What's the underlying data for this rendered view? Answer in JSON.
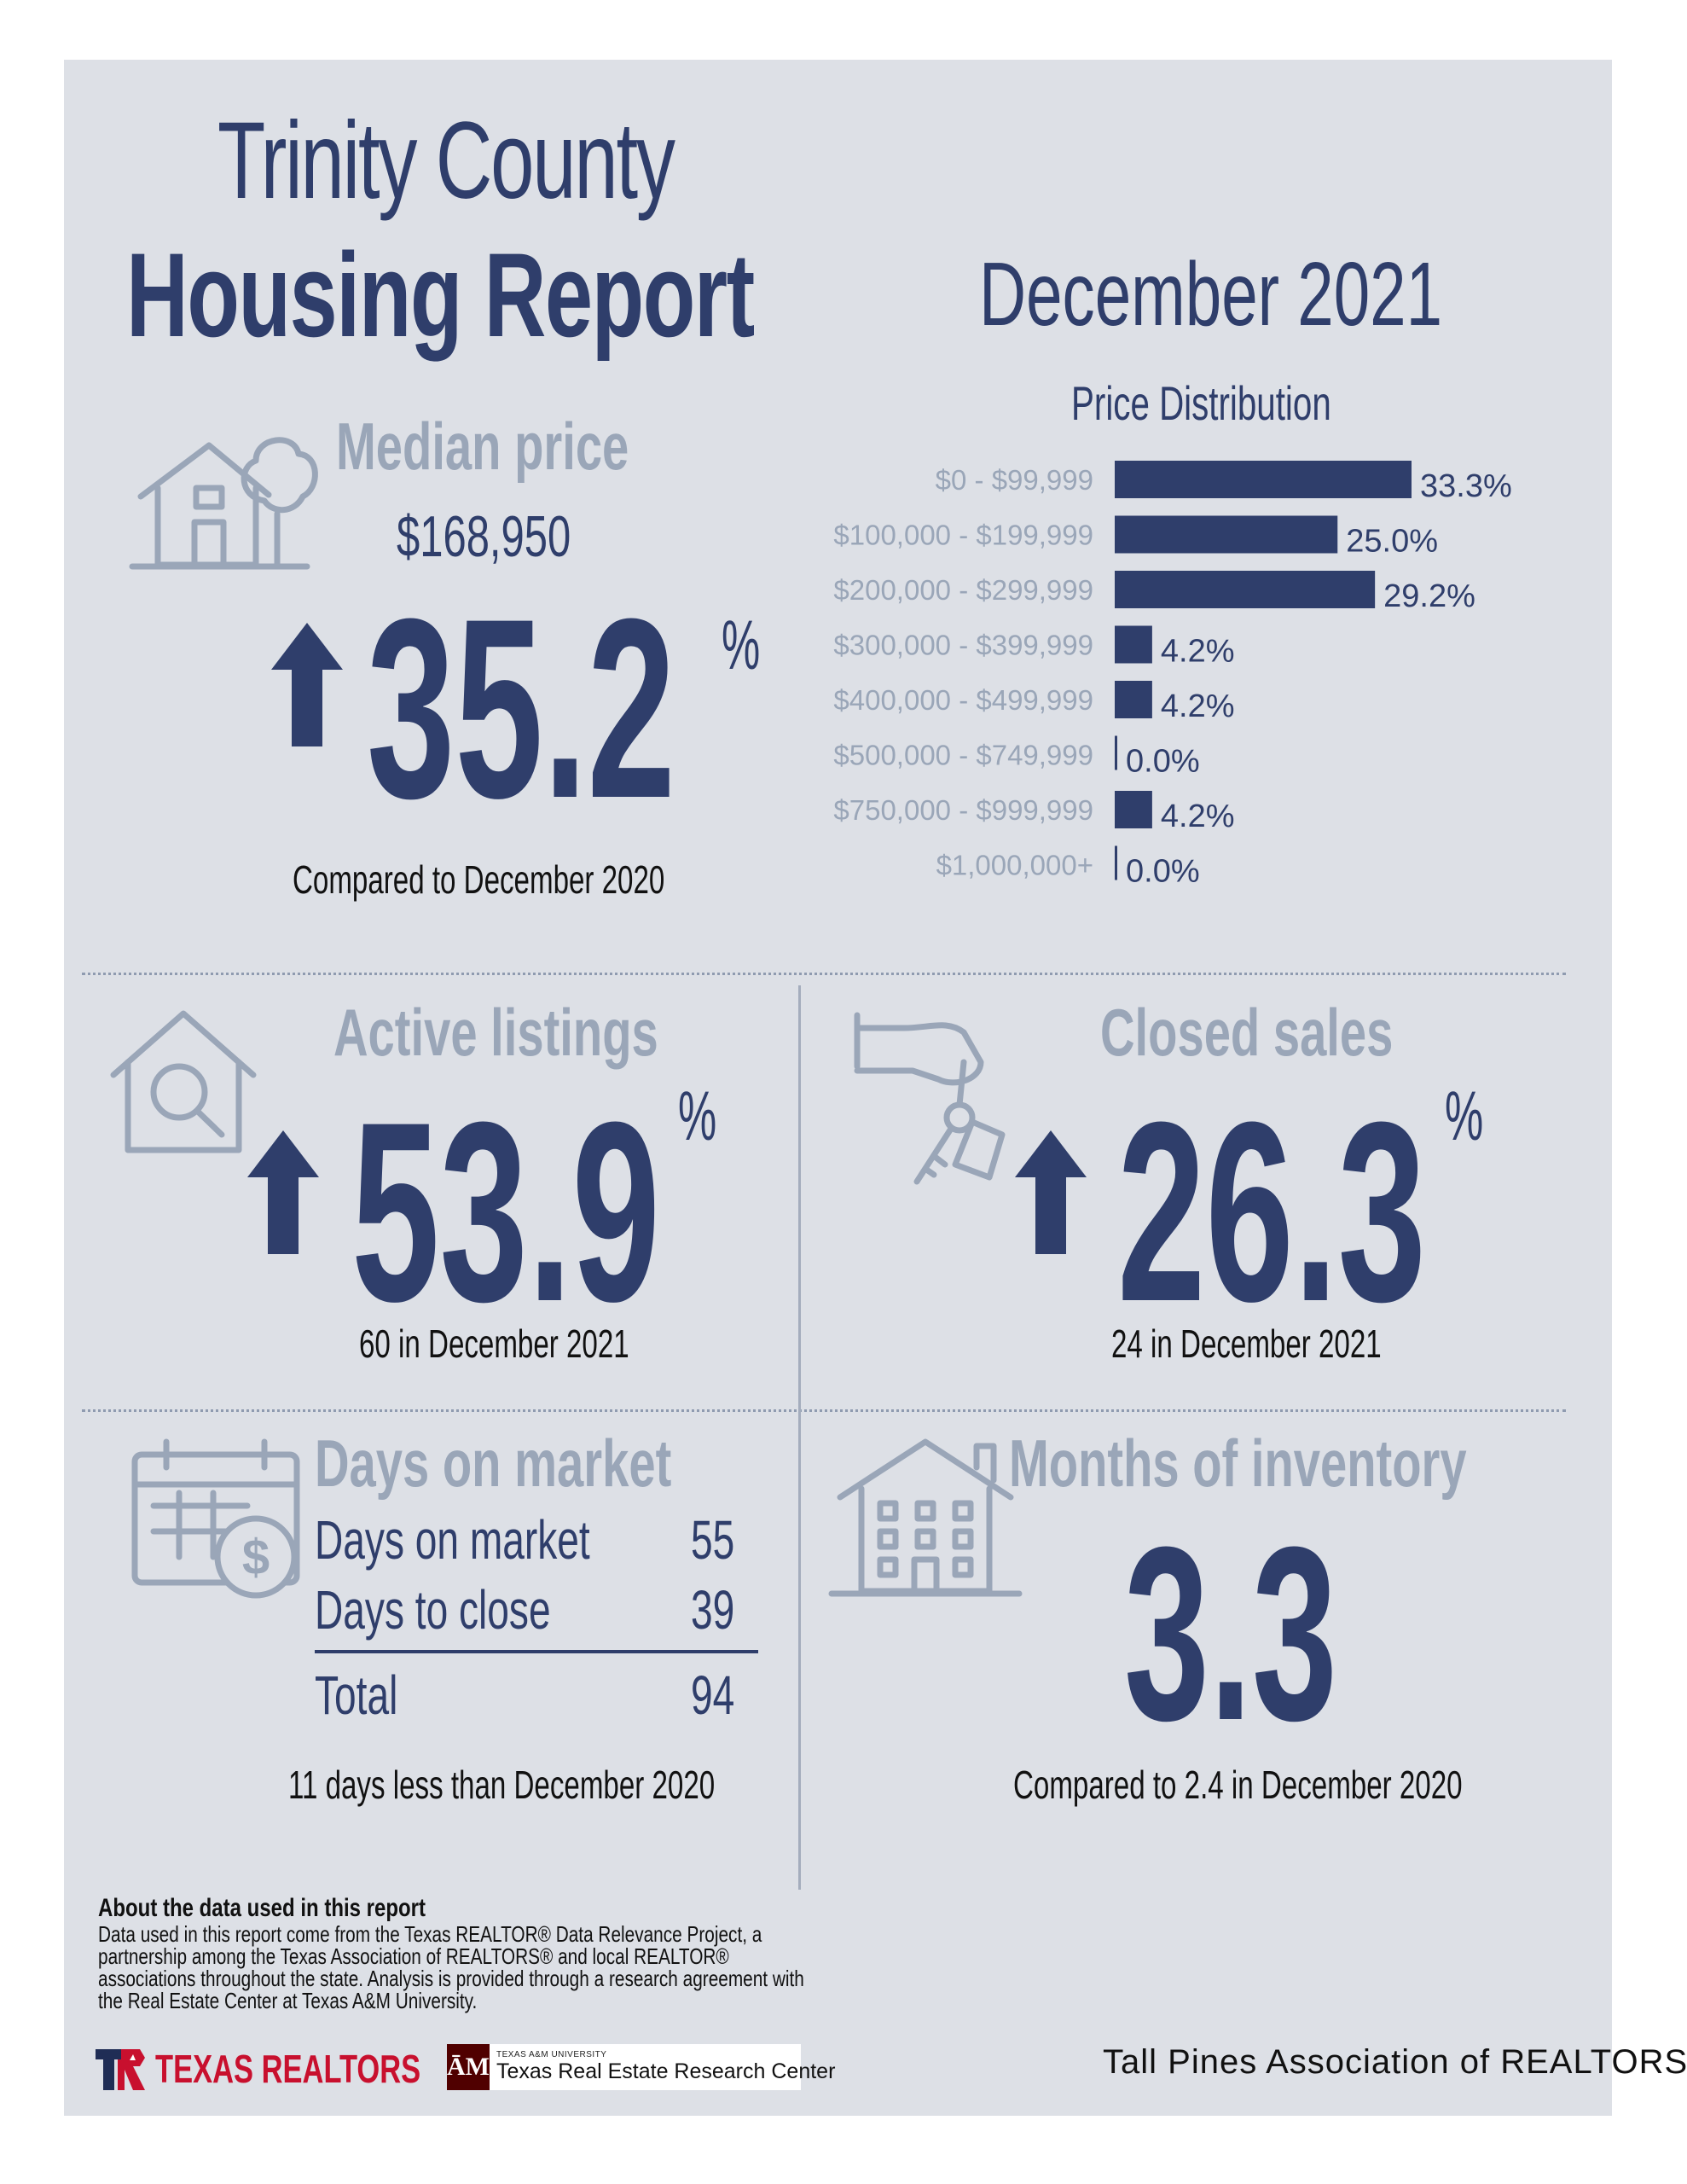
{
  "header": {
    "county": "Trinity County",
    "title": "Housing Report",
    "date": "December 2021"
  },
  "median": {
    "heading": "Median price",
    "value": "$168,950",
    "change": "35.2",
    "percent_sign": "%",
    "direction": "up",
    "caption": "Compared to December 2020"
  },
  "chart_data": {
    "type": "bar",
    "orientation": "horizontal",
    "title": "Price Distribution",
    "categories": [
      "$0 - $99,999",
      "$100,000 - $199,999",
      "$200,000 - $299,999",
      "$300,000 - $399,999",
      "$400,000 - $499,999",
      "$500,000 - $749,999",
      "$750,000 - $999,999",
      "$1,000,000+"
    ],
    "values": [
      33.3,
      25.0,
      29.2,
      4.2,
      4.2,
      0.0,
      4.2,
      0.0
    ],
    "value_labels": [
      "33.3%",
      "25.0%",
      "29.2%",
      "4.2%",
      "4.2%",
      "0.0%",
      "4.2%",
      "0.0%"
    ],
    "bar_color": "#2f3e6b",
    "grid": false
  },
  "active": {
    "heading": "Active listings",
    "change": "53.9",
    "percent_sign": "%",
    "direction": "up",
    "caption": "60 in December 2021"
  },
  "closed": {
    "heading": "Closed sales",
    "change": "26.3",
    "percent_sign": "%",
    "direction": "up",
    "caption": "24 in December 2021"
  },
  "dom": {
    "heading": "Days on market",
    "rows": [
      {
        "label": "Days on market",
        "value": "55"
      },
      {
        "label": "Days to close",
        "value": "39"
      },
      {
        "label": "Total",
        "value": "94"
      }
    ],
    "caption": "11 days less than December 2020"
  },
  "inventory": {
    "heading": "Months of inventory",
    "value": "3.3",
    "caption": "Compared to 2.4 in December 2020"
  },
  "about": {
    "heading": "About the data used in this report",
    "text": "Data used in this report come from the Texas REALTOR® Data Relevance Project, a partnership among the Texas Association of REALTORS® and local REALTOR® associations throughout the state. Analysis is provided through a research agreement with the Real Estate Center at Texas A&M University."
  },
  "footer": {
    "texas_realtors": "TEXAS REALTORS",
    "tamu_small": "TEXAS A&M UNIVERSITY",
    "research_center": "Texas Real Estate Research Center",
    "association": "Tall Pines Association of REALTORS®"
  },
  "colors": {
    "background": "#dde0e6",
    "navy": "#2f3e6b",
    "muted": "#9aa6b8",
    "brand_red": "#c8102e",
    "tamu_maroon": "#500000"
  }
}
